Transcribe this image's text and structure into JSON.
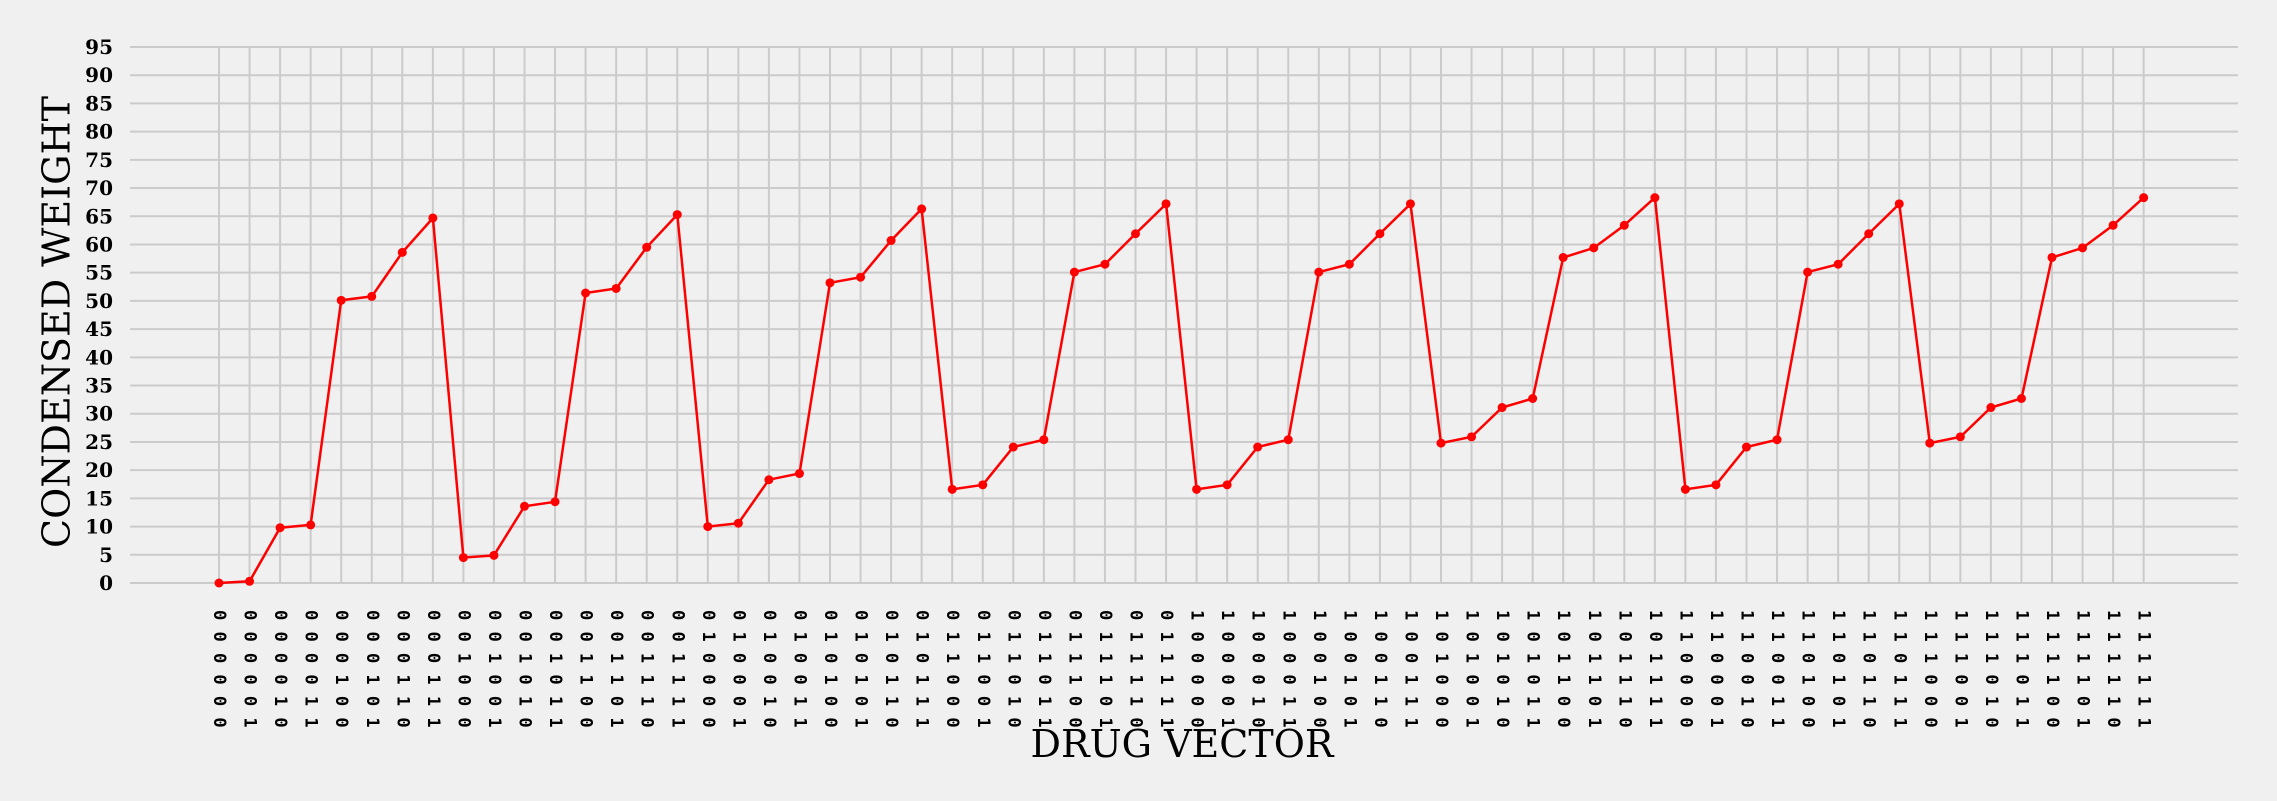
{
  "chart_data": {
    "type": "line",
    "xlabel": "DRUG VECTOR",
    "ylabel": "CONDENSED WEIGHT",
    "ylim": [
      0,
      95
    ],
    "yticks": [
      0,
      5,
      10,
      15,
      20,
      25,
      30,
      35,
      40,
      45,
      50,
      55,
      60,
      65,
      70,
      75,
      80,
      85,
      90,
      95
    ],
    "grid": true,
    "line_color": "#ff0000",
    "background": "#f0f0f0",
    "categories": [
      "0 0 0 0 0 0",
      "0 0 0 0 0 1",
      "0 0 0 0 1 0",
      "0 0 0 0 1 1",
      "0 0 0 1 0 0",
      "0 0 0 1 0 1",
      "0 0 0 1 1 0",
      "0 0 0 1 1 1",
      "0 0 1 0 0 0",
      "0 0 1 0 0 1",
      "0 0 1 0 1 0",
      "0 0 1 0 1 1",
      "0 0 1 1 0 0",
      "0 0 1 1 0 1",
      "0 0 1 1 1 0",
      "0 0 1 1 1 1",
      "0 1 0 0 0 0",
      "0 1 0 0 0 1",
      "0 1 0 0 1 0",
      "0 1 0 0 1 1",
      "0 1 0 1 0 0",
      "0 1 0 1 0 1",
      "0 1 0 1 1 0",
      "0 1 0 1 1 1",
      "0 1 1 0 0 0",
      "0 1 1 0 0 1",
      "0 1 1 0 1 0",
      "0 1 1 0 1 1",
      "0 1 1 1 0 0",
      "0 1 1 1 0 1",
      "0 1 1 1 1 0",
      "0 1 1 1 1 1",
      "1 0 0 0 0 0",
      "1 0 0 0 0 1",
      "1 0 0 0 1 0",
      "1 0 0 0 1 1",
      "1 0 0 1 0 0",
      "1 0 0 1 0 1",
      "1 0 0 1 1 0",
      "1 0 0 1 1 1",
      "1 0 1 0 0 0",
      "1 0 1 0 0 1",
      "1 0 1 0 1 0",
      "1 0 1 0 1 1",
      "1 0 1 1 0 0",
      "1 0 1 1 0 1",
      "1 0 1 1 1 0",
      "1 0 1 1 1 1",
      "1 1 0 0 0 0",
      "1 1 0 0 0 1",
      "1 1 0 0 1 0",
      "1 1 0 0 1 1",
      "1 1 0 1 0 0",
      "1 1 0 1 0 1",
      "1 1 0 1 1 0",
      "1 1 0 1 1 1",
      "1 1 1 0 0 0",
      "1 1 1 0 0 1",
      "1 1 1 0 1 0",
      "1 1 1 0 1 1",
      "1 1 1 1 0 0",
      "1 1 1 1 0 1",
      "1 1 1 1 1 0",
      "1 1 1 1 1 1"
    ],
    "values": [
      0.0,
      0.3,
      9.8,
      10.3,
      50.1,
      50.8,
      58.6,
      64.7,
      4.5,
      4.9,
      13.6,
      14.4,
      51.4,
      52.2,
      59.5,
      65.3,
      10.0,
      10.6,
      18.3,
      19.4,
      53.2,
      54.2,
      60.7,
      66.3,
      16.6,
      17.4,
      24.1,
      25.4,
      55.1,
      56.5,
      61.9,
      67.2,
      16.6,
      17.4,
      24.1,
      25.4,
      55.1,
      56.5,
      61.9,
      67.2,
      24.8,
      25.9,
      31.1,
      32.7,
      57.7,
      59.4,
      63.4,
      68.3,
      16.6,
      17.4,
      24.1,
      25.4,
      55.1,
      56.5,
      61.9,
      67.2,
      24.8,
      25.9,
      31.1,
      32.7,
      57.7,
      59.4,
      63.4,
      68.3
    ]
  }
}
